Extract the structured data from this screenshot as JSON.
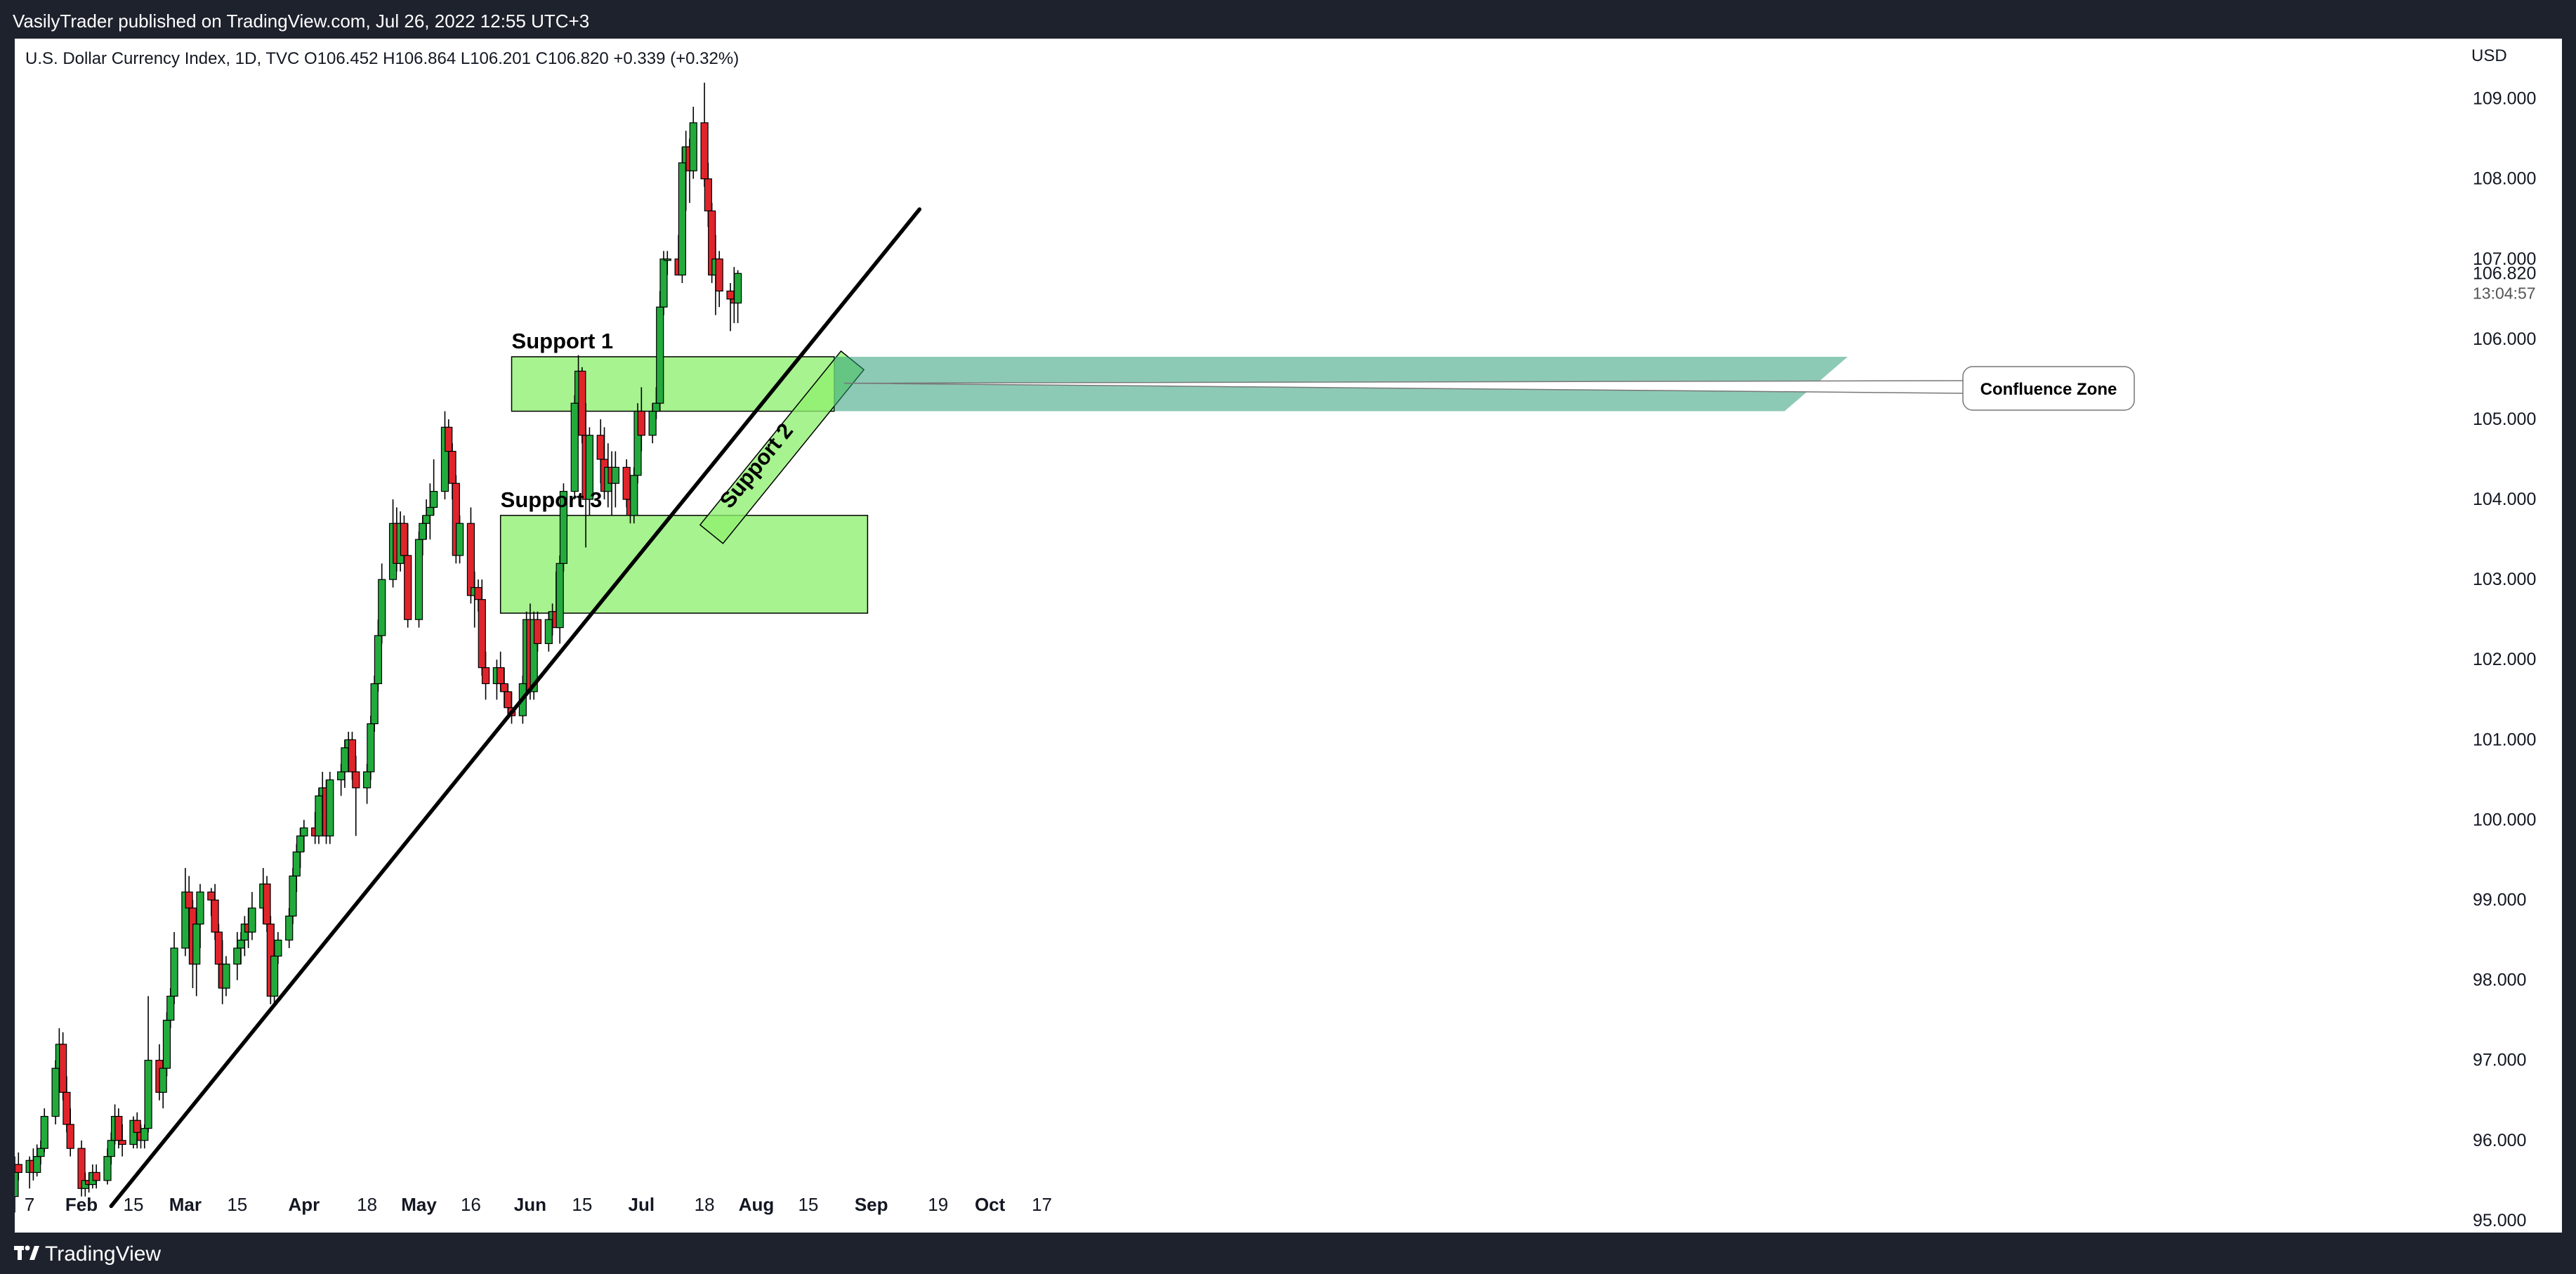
{
  "header": {
    "published": "VasilyTrader published on TradingView.com, Jul 26, 2022 12:55 UTC+3"
  },
  "footer": {
    "logo_text": "TradingView",
    "logo_icon": "tradingview-logo-icon"
  },
  "colors": {
    "frame": "#1e222d",
    "bull": "#22ab3c",
    "bear": "#e0242b",
    "zone_fill": "#8ef06f",
    "trendline": "#000000"
  },
  "chart_data": {
    "type": "candlestick",
    "symbol_info": "U.S. Dollar Currency Index, 1D, TVC  O106.452  H106.864  L106.201  C106.820  +0.339 (+0.32%)",
    "currency": "USD",
    "last_price": "106.820",
    "countdown": "13:04:57",
    "ylim": [
      94.85,
      109.75
    ],
    "y_ticks": [
      "95.000",
      "96.000",
      "97.000",
      "98.000",
      "99.000",
      "100.000",
      "101.000",
      "102.000",
      "103.000",
      "104.000",
      "105.000",
      "106.000",
      "107.000",
      "108.000",
      "109.000"
    ],
    "x_ticks": [
      "7",
      "Feb",
      "15",
      "Mar",
      "15",
      "Apr",
      "18",
      "May",
      "16",
      "Jun",
      "15",
      "Jul",
      "18",
      "Aug",
      "15",
      "Sep",
      "19",
      "Oct",
      "17"
    ],
    "x_tick_dates": [
      "2022-01-17",
      "2022-01-31",
      "2022-02-14",
      "2022-02-28",
      "2022-03-14",
      "2022-04-01",
      "2022-04-18",
      "2022-05-02",
      "2022-05-16",
      "2022-06-01",
      "2022-06-15",
      "2022-07-01",
      "2022-07-18",
      "2022-08-01",
      "2022-08-15",
      "2022-09-01",
      "2022-09-19",
      "2022-10-03",
      "2022-10-17"
    ],
    "candles": [
      [
        95.3,
        95.8,
        95.1,
        95.7
      ],
      [
        95.7,
        95.85,
        95.5,
        95.6
      ],
      [
        95.6,
        95.8,
        95.4,
        95.75
      ],
      [
        95.75,
        95.9,
        95.5,
        95.6
      ],
      [
        95.6,
        95.95,
        95.55,
        95.8
      ],
      [
        95.8,
        96.0,
        95.7,
        95.9
      ],
      [
        95.9,
        96.4,
        95.85,
        96.3
      ],
      [
        96.3,
        97.0,
        96.2,
        96.9
      ],
      [
        96.9,
        97.4,
        96.8,
        97.2
      ],
      [
        97.2,
        97.35,
        96.5,
        96.6
      ],
      [
        96.6,
        96.8,
        96.1,
        96.2
      ],
      [
        96.2,
        96.4,
        95.8,
        95.9
      ],
      [
        95.9,
        96.0,
        95.3,
        95.4
      ],
      [
        95.4,
        95.6,
        95.3,
        95.5
      ],
      [
        95.5,
        95.6,
        95.35,
        95.45
      ],
      [
        95.45,
        95.7,
        95.4,
        95.6
      ],
      [
        95.6,
        95.7,
        95.4,
        95.5
      ],
      [
        95.5,
        95.9,
        95.45,
        95.8
      ],
      [
        95.8,
        96.1,
        95.7,
        96.0
      ],
      [
        96.0,
        96.45,
        95.95,
        96.3
      ],
      [
        96.3,
        96.4,
        95.9,
        96.0
      ],
      [
        96.0,
        96.2,
        95.8,
        95.95
      ],
      [
        95.95,
        96.3,
        95.9,
        96.25
      ],
      [
        96.25,
        96.35,
        95.9,
        96.1
      ],
      [
        96.1,
        96.2,
        95.9,
        96.0
      ],
      [
        96.0,
        96.2,
        95.9,
        96.15
      ],
      [
        96.15,
        97.8,
        96.1,
        97.0
      ],
      [
        97.0,
        97.2,
        96.5,
        96.6
      ],
      [
        96.6,
        97.0,
        96.4,
        96.9
      ],
      [
        96.9,
        97.6,
        96.8,
        97.5
      ],
      [
        97.5,
        97.9,
        97.4,
        97.8
      ],
      [
        97.8,
        98.6,
        97.7,
        98.4
      ],
      [
        98.4,
        99.4,
        98.3,
        99.1
      ],
      [
        99.1,
        99.3,
        98.6,
        98.9
      ],
      [
        98.9,
        99.0,
        97.9,
        98.2
      ],
      [
        98.2,
        98.9,
        97.8,
        98.7
      ],
      [
        98.7,
        99.2,
        98.4,
        99.1
      ],
      [
        99.1,
        99.15,
        98.8,
        99.0
      ],
      [
        99.0,
        99.2,
        98.5,
        98.6
      ],
      [
        98.6,
        98.7,
        97.9,
        98.2
      ],
      [
        98.2,
        98.5,
        97.7,
        97.9
      ],
      [
        97.9,
        98.3,
        97.8,
        98.2
      ],
      [
        98.2,
        98.6,
        98.0,
        98.4
      ],
      [
        98.4,
        98.6,
        98.2,
        98.5
      ],
      [
        98.5,
        98.8,
        98.3,
        98.7
      ],
      [
        98.7,
        98.9,
        98.4,
        98.6
      ],
      [
        98.6,
        99.1,
        98.5,
        98.9
      ],
      [
        98.9,
        99.4,
        98.7,
        99.2
      ],
      [
        99.2,
        99.3,
        98.6,
        98.7
      ],
      [
        98.7,
        98.8,
        97.7,
        97.8
      ],
      [
        97.8,
        98.4,
        97.7,
        98.3
      ],
      [
        98.3,
        98.6,
        98.2,
        98.5
      ],
      [
        98.5,
        98.9,
        98.4,
        98.8
      ],
      [
        98.8,
        99.4,
        98.7,
        99.3
      ],
      [
        99.3,
        99.7,
        99.1,
        99.6
      ],
      [
        99.6,
        99.9,
        99.4,
        99.8
      ],
      [
        99.8,
        100.0,
        99.6,
        99.9
      ],
      [
        99.9,
        100.1,
        99.7,
        99.8
      ],
      [
        99.8,
        100.4,
        99.7,
        100.3
      ],
      [
        100.3,
        100.6,
        100.1,
        100.4
      ],
      [
        100.4,
        100.5,
        99.7,
        99.8
      ],
      [
        99.8,
        100.6,
        99.7,
        100.5
      ],
      [
        100.5,
        100.7,
        100.3,
        100.6
      ],
      [
        100.6,
        101.0,
        100.4,
        100.9
      ],
      [
        100.9,
        101.1,
        100.7,
        101.0
      ],
      [
        101.0,
        101.1,
        100.5,
        100.6
      ],
      [
        100.6,
        100.8,
        99.8,
        100.4
      ],
      [
        100.4,
        100.7,
        100.2,
        100.6
      ],
      [
        100.6,
        101.3,
        100.5,
        101.2
      ],
      [
        101.2,
        101.8,
        101.1,
        101.7
      ],
      [
        101.7,
        102.5,
        101.6,
        102.3
      ],
      [
        102.3,
        103.2,
        102.2,
        103.0
      ],
      [
        103.0,
        104.0,
        102.9,
        103.7
      ],
      [
        103.7,
        103.9,
        103.1,
        103.2
      ],
      [
        103.2,
        103.85,
        103.1,
        103.7
      ],
      [
        103.7,
        103.8,
        103.2,
        103.3
      ],
      [
        103.3,
        103.7,
        102.4,
        102.5
      ],
      [
        102.5,
        103.6,
        102.4,
        103.5
      ],
      [
        103.5,
        103.8,
        103.3,
        103.7
      ],
      [
        103.7,
        104.0,
        103.5,
        103.8
      ],
      [
        103.8,
        104.2,
        103.5,
        103.9
      ],
      [
        103.9,
        104.5,
        103.8,
        104.1
      ],
      [
        104.1,
        105.1,
        104.0,
        104.9
      ],
      [
        104.9,
        105.0,
        104.4,
        104.6
      ],
      [
        104.6,
        104.7,
        104.0,
        104.2
      ],
      [
        104.2,
        104.3,
        103.2,
        103.3
      ],
      [
        103.3,
        103.8,
        103.2,
        103.7
      ],
      [
        103.7,
        103.9,
        102.7,
        102.8
      ],
      [
        102.8,
        103.1,
        102.4,
        102.9
      ],
      [
        102.9,
        103.0,
        102.6,
        102.75
      ],
      [
        102.75,
        103.0,
        101.8,
        101.9
      ],
      [
        101.9,
        102.1,
        101.5,
        101.7
      ],
      [
        101.7,
        102.0,
        101.5,
        101.9
      ],
      [
        101.9,
        102.1,
        101.6,
        101.7
      ],
      [
        101.7,
        101.9,
        101.4,
        101.6
      ],
      [
        101.6,
        101.7,
        101.3,
        101.4
      ],
      [
        101.4,
        101.6,
        101.2,
        101.3
      ],
      [
        101.3,
        101.8,
        101.2,
        101.7
      ],
      [
        101.7,
        102.6,
        101.6,
        102.5
      ],
      [
        102.5,
        102.7,
        101.5,
        101.6
      ],
      [
        101.6,
        102.6,
        101.5,
        102.5
      ],
      [
        102.5,
        102.6,
        102.1,
        102.2
      ],
      [
        102.2,
        102.6,
        102.1,
        102.5
      ],
      [
        102.5,
        102.7,
        102.3,
        102.6
      ],
      [
        102.6,
        103.1,
        102.4,
        102.4
      ],
      [
        102.4,
        103.3,
        102.2,
        103.2
      ],
      [
        103.2,
        104.2,
        103.1,
        104.1
      ],
      [
        104.1,
        105.3,
        104.0,
        105.2
      ],
      [
        105.2,
        105.8,
        105.1,
        105.6
      ],
      [
        105.6,
        105.65,
        104.7,
        104.8
      ],
      [
        104.8,
        105.2,
        103.4,
        104.0
      ],
      [
        104.0,
        104.9,
        103.8,
        104.8
      ],
      [
        104.8,
        105.0,
        104.2,
        104.5
      ],
      [
        104.5,
        104.9,
        104.0,
        104.1
      ],
      [
        104.1,
        104.7,
        103.9,
        104.4
      ],
      [
        104.4,
        104.6,
        103.8,
        104.2
      ],
      [
        104.2,
        104.6,
        103.9,
        104.4
      ],
      [
        104.4,
        104.5,
        103.9,
        104.0
      ],
      [
        104.0,
        104.3,
        103.7,
        103.8
      ],
      [
        103.8,
        104.4,
        103.7,
        104.3
      ],
      [
        104.3,
        105.2,
        104.2,
        105.1
      ],
      [
        105.1,
        105.4,
        104.6,
        104.8
      ],
      [
        104.8,
        105.2,
        104.7,
        105.1
      ],
      [
        105.1,
        105.4,
        105.0,
        105.2
      ],
      [
        105.2,
        106.6,
        105.1,
        106.4
      ],
      [
        106.4,
        107.1,
        106.3,
        107.0
      ],
      [
        107.0,
        107.1,
        106.8,
        107.0
      ],
      [
        107.0,
        107.3,
        106.8,
        106.8
      ],
      [
        106.8,
        108.4,
        106.7,
        108.2
      ],
      [
        108.2,
        108.6,
        107.6,
        108.4
      ],
      [
        108.4,
        108.5,
        107.7,
        108.1
      ],
      [
        108.1,
        108.9,
        108.0,
        108.7
      ],
      [
        108.7,
        109.2,
        107.9,
        108.0
      ],
      [
        108.0,
        108.2,
        107.4,
        107.6
      ],
      [
        107.6,
        107.7,
        106.7,
        106.8
      ],
      [
        106.8,
        107.3,
        106.3,
        107.0
      ],
      [
        107.0,
        107.1,
        106.4,
        106.6
      ],
      [
        106.6,
        106.7,
        106.1,
        106.5
      ],
      [
        106.5,
        106.9,
        106.2,
        106.45
      ],
      [
        106.45,
        106.86,
        106.2,
        106.82
      ]
    ],
    "annotations": [
      {
        "label": "Support 1",
        "kind": "zone",
        "from": "2022-05-27",
        "to": "2022-08-22",
        "low": 105.1,
        "high": 105.78
      },
      {
        "label": "Support 3",
        "kind": "zone",
        "from": "2022-05-24",
        "to": "2022-08-31",
        "low": 102.58,
        "high": 103.8
      },
      {
        "label": "Support 2",
        "kind": "rising-channel",
        "from": "2022-07-23",
        "to": "2022-08-30"
      },
      {
        "label": "Confluence Zone",
        "kind": "callout"
      }
    ],
    "trendline": {
      "from": {
        "date": "2022-02-08",
        "price": 95.18
      },
      "to": {
        "date": "2022-09-14",
        "price": 107.62
      }
    }
  }
}
